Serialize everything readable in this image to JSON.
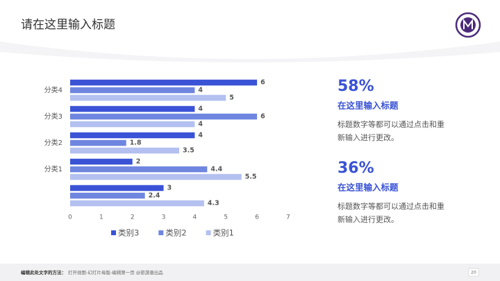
{
  "header": {
    "title": "请在这里输入标题"
  },
  "chart_data": {
    "type": "bar",
    "orientation": "horizontal",
    "categories": [
      null,
      "分类1",
      "分类2",
      "分类3",
      "分类4"
    ],
    "series": [
      {
        "name": "类别3",
        "color": "#3a53d6",
        "values": [
          3,
          2,
          4,
          4,
          6
        ]
      },
      {
        "name": "类别2",
        "color": "#6f86e0",
        "values": [
          2.4,
          4.4,
          1.8,
          6,
          4
        ]
      },
      {
        "name": "类别1",
        "color": "#b3c0f0",
        "values": [
          4.3,
          5.5,
          3.5,
          4,
          5
        ]
      }
    ],
    "xlim": [
      0,
      7
    ],
    "xticks": [
      0,
      1,
      2,
      3,
      4,
      5,
      6,
      7
    ],
    "grid": false,
    "legend": "bottom"
  },
  "highlights": [
    {
      "value": "58%",
      "title": "在这里输入标题",
      "lines": [
        "标题数字等都可以通过点击和重",
        "新输入进行更改。"
      ]
    },
    {
      "value": "36%",
      "title": "在这里输入标题",
      "lines": [
        "标题数字等都可以通过点击和重",
        "新输入进行更改。"
      ]
    }
  ],
  "footer": {
    "label": "编辑此处文字的方法：",
    "text": "打开视图-幻灯片母版-编辑第一页 @旅游唐出品",
    "page": "20"
  }
}
